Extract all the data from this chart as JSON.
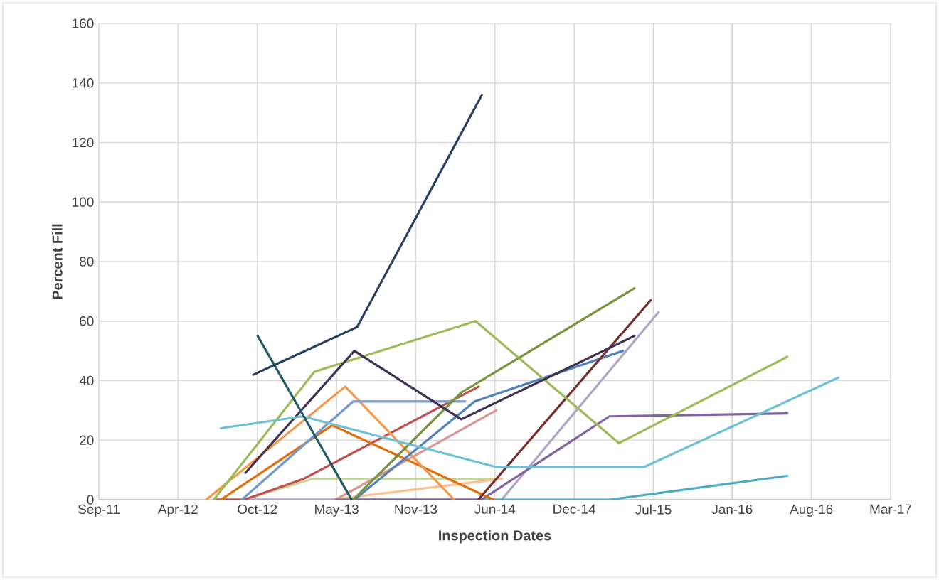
{
  "chart_data": {
    "type": "line",
    "xlabel": "Inspection Dates",
    "ylabel": "Percent Fill",
    "xlim": [
      "2011-09-15",
      "2017-03-06"
    ],
    "ylim": [
      0,
      160
    ],
    "xticks": [
      {
        "value": "2011-09-15",
        "label": "Sep-11"
      },
      {
        "value": "2012-04-02",
        "label": "Apr-12"
      },
      {
        "value": "2012-10-19",
        "label": "Oct-12"
      },
      {
        "value": "2013-05-07",
        "label": "May-13"
      },
      {
        "value": "2013-11-23",
        "label": "Nov-13"
      },
      {
        "value": "2014-06-11",
        "label": "Jun-14"
      },
      {
        "value": "2014-12-28",
        "label": "Dec-14"
      },
      {
        "value": "2015-07-16",
        "label": "Jul-15"
      },
      {
        "value": "2016-01-31",
        "label": "Jan-16"
      },
      {
        "value": "2016-08-18",
        "label": "Aug-16"
      },
      {
        "value": "2017-03-06",
        "label": "Mar-17"
      }
    ],
    "yticks": [
      0,
      20,
      40,
      60,
      80,
      100,
      120,
      140,
      160
    ],
    "grid": true,
    "series": [
      {
        "color": "#c3d69b",
        "x": [
          "2012-09-16",
          "2013-03-07",
          "2014-06-14"
        ],
        "values": [
          0,
          7,
          7
        ]
      },
      {
        "color": "#d99694",
        "x": [
          "2012-07-01",
          "2013-05-05",
          "2014-06-14"
        ],
        "values": [
          0,
          0,
          30
        ]
      },
      {
        "color": "#fac090",
        "x": [
          "2012-09-16",
          "2013-04-26",
          "2014-06-28"
        ],
        "values": [
          0,
          0,
          7
        ]
      },
      {
        "color": "#b3a2c7",
        "x": [
          "2012-07-01",
          "2014-06-28",
          "2015-07-29"
        ],
        "values": [
          0,
          0,
          63
        ]
      },
      {
        "color": "#4bacc6",
        "x": [
          "2013-06-12",
          "2015-03-27",
          "2016-06-18"
        ],
        "values": [
          0,
          0,
          8
        ]
      },
      {
        "color": "#8064a2",
        "x": [
          "2013-05-05",
          "2014-05-08",
          "2015-03-27",
          "2016-06-18"
        ],
        "values": [
          0,
          0,
          28,
          29
        ]
      },
      {
        "color": "#c0504d",
        "x": [
          "2012-07-10",
          "2012-09-16",
          "2013-02-13",
          "2014-05-01"
        ],
        "values": [
          0,
          0,
          7,
          38
        ]
      },
      {
        "color": "#e46c0a",
        "x": [
          "2012-07-19",
          "2013-04-26",
          "2014-06-07"
        ],
        "values": [
          0,
          25,
          0
        ]
      },
      {
        "color": "#f79646",
        "x": [
          "2012-06-12",
          "2013-05-29",
          "2014-02-28"
        ],
        "values": [
          0,
          38,
          0
        ]
      },
      {
        "color": "#729aca",
        "x": [
          "2012-09-10",
          "2013-06-18",
          "2014-03-28"
        ],
        "values": [
          0,
          33,
          33
        ]
      },
      {
        "color": "#4f81bd",
        "x": [
          "2013-06-21",
          "2014-04-21",
          "2015-04-30"
        ],
        "values": [
          0,
          33,
          50
        ]
      },
      {
        "color": "#77933c",
        "x": [
          "2013-06-18",
          "2014-03-18",
          "2015-05-29"
        ],
        "values": [
          0,
          36,
          71
        ]
      },
      {
        "color": "#772c2a",
        "x": [
          "2014-04-30",
          "2015-07-09"
        ],
        "values": [
          0,
          67
        ]
      },
      {
        "color": "#9bbb59",
        "x": [
          "2012-07-01",
          "2013-03-12",
          "2014-04-23",
          "2015-04-20",
          "2016-06-18"
        ],
        "values": [
          0,
          43,
          60,
          19,
          48
        ]
      },
      {
        "color": "#403152",
        "x": [
          "2012-09-19",
          "2013-06-21",
          "2014-03-18",
          "2015-05-29"
        ],
        "values": [
          9,
          50,
          27,
          55
        ]
      },
      {
        "color": "#6dc0d5",
        "x": [
          "2012-07-19",
          "2013-02-10",
          "2014-06-14",
          "2015-06-23",
          "2016-10-25"
        ],
        "values": [
          24,
          28,
          11,
          11,
          41
        ]
      },
      {
        "color": "#215968",
        "x": [
          "2012-10-20",
          "2013-06-14"
        ],
        "values": [
          55,
          0
        ]
      },
      {
        "color": "#254061",
        "x": [
          "2012-10-09",
          "2013-06-28",
          "2014-05-09"
        ],
        "values": [
          42,
          58,
          136
        ]
      }
    ]
  }
}
